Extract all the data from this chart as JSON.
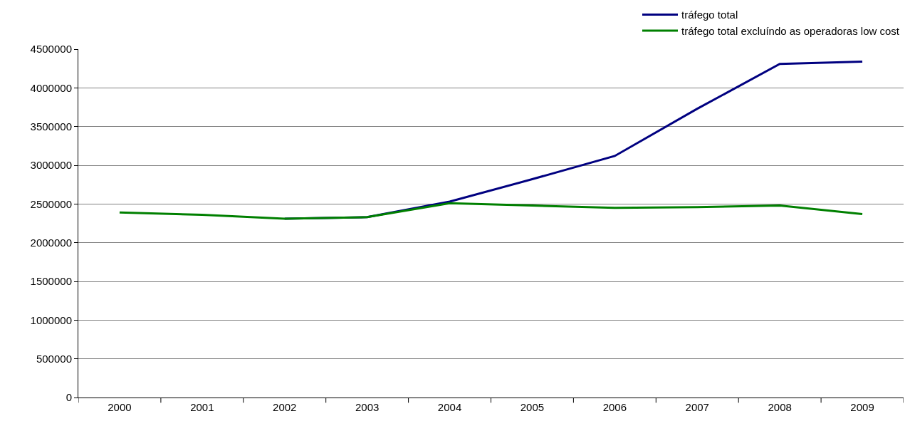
{
  "chart_data": {
    "type": "line",
    "categories": [
      "2000",
      "2001",
      "2002",
      "2003",
      "2004",
      "2005",
      "2006",
      "2007",
      "2008",
      "2009"
    ],
    "series": [
      {
        "name": "tráfego total",
        "color": "#000080",
        "values": [
          null,
          null,
          2310000,
          2330000,
          2530000,
          2820000,
          3120000,
          3730000,
          4310000,
          4340000
        ]
      },
      {
        "name": "tráfego total excluíndo as operadoras low cost",
        "color": "#008000",
        "values": [
          2390000,
          2360000,
          2310000,
          2330000,
          2510000,
          2480000,
          2450000,
          2460000,
          2480000,
          2370000
        ]
      }
    ],
    "ylim": [
      0,
      4500000
    ],
    "yticks": [
      0,
      500000,
      1000000,
      1500000,
      2000000,
      2500000,
      3000000,
      3500000,
      4000000,
      4500000
    ],
    "grid": "y",
    "legend": "top right",
    "marker": "none",
    "line_style": "solid"
  }
}
